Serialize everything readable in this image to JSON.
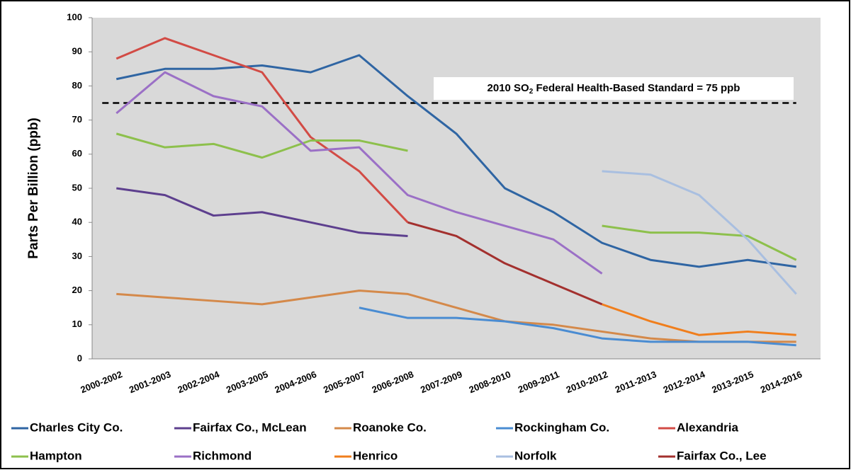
{
  "chart_data": {
    "type": "line",
    "ylabel": "Parts Per Billion (ppb)",
    "annotation": {
      "text": "2010 SO",
      "subscript": "2",
      "rest": " Federal Health-Based Standard = 75  ppb"
    },
    "reference_line": 75,
    "categories": [
      "2000-2002",
      "2001-2003",
      "2002-2004",
      "2003-2005",
      "2004-2006",
      "2005-2007",
      "2006-2008",
      "2007-2009",
      "2008-2010",
      "2009-2011",
      "2010-2012",
      "2011-2013",
      "2012-2014",
      "2013-2015",
      "2014-2016"
    ],
    "ylim": [
      0,
      100
    ],
    "yticks": [
      0,
      10,
      20,
      30,
      40,
      50,
      60,
      70,
      80,
      90,
      100
    ],
    "grid": false,
    "series": [
      {
        "name": "Charles City Co.",
        "color": "#2f65a3",
        "values": [
          82,
          85,
          85,
          86,
          84,
          89,
          77,
          66,
          50,
          43,
          34,
          29,
          27,
          29,
          27
        ]
      },
      {
        "name": "Fairfax Co., McLean",
        "color": "#5d3f8e",
        "values": [
          50,
          48,
          42,
          43,
          40,
          37,
          36,
          null,
          null,
          null,
          null,
          null,
          null,
          null,
          null
        ]
      },
      {
        "name": "Roanoke Co.",
        "color": "#d4894a",
        "values": [
          19,
          18,
          17,
          16,
          18,
          20,
          19,
          15,
          11,
          10,
          8,
          6,
          5,
          5,
          5
        ]
      },
      {
        "name": "Rockingham Co.",
        "color": "#4a8cd2",
        "values": [
          null,
          null,
          null,
          null,
          null,
          15,
          12,
          12,
          11,
          9,
          6,
          5,
          5,
          5,
          4
        ]
      },
      {
        "name": "Alexandria",
        "color": "#d24b45",
        "values": [
          88,
          94,
          89,
          84,
          65,
          55,
          40,
          null,
          null,
          null,
          null,
          null,
          null,
          null,
          null
        ]
      },
      {
        "name": "Hampton",
        "color": "#8dc04c",
        "values": [
          66,
          62,
          63,
          59,
          64,
          64,
          61,
          null,
          null,
          null,
          39,
          37,
          37,
          36,
          29
        ]
      },
      {
        "name": "Richmond",
        "color": "#9b70c6",
        "values": [
          72,
          84,
          77,
          74,
          61,
          62,
          48,
          43,
          39,
          35,
          25,
          null,
          null,
          null,
          null
        ]
      },
      {
        "name": "Henrico",
        "color": "#f07e1c",
        "values": [
          null,
          null,
          null,
          null,
          null,
          null,
          null,
          null,
          null,
          null,
          16,
          11,
          7,
          8,
          7
        ]
      },
      {
        "name": "Norfolk",
        "color": "#a9bfe0",
        "values": [
          null,
          null,
          null,
          null,
          null,
          null,
          null,
          null,
          null,
          null,
          55,
          54,
          48,
          35,
          19
        ]
      },
      {
        "name": "Fairfax Co., Lee",
        "color": "#a3302e",
        "values": [
          null,
          null,
          null,
          null,
          null,
          null,
          40,
          36,
          28,
          22,
          16,
          null,
          null,
          null,
          null
        ]
      }
    ]
  }
}
